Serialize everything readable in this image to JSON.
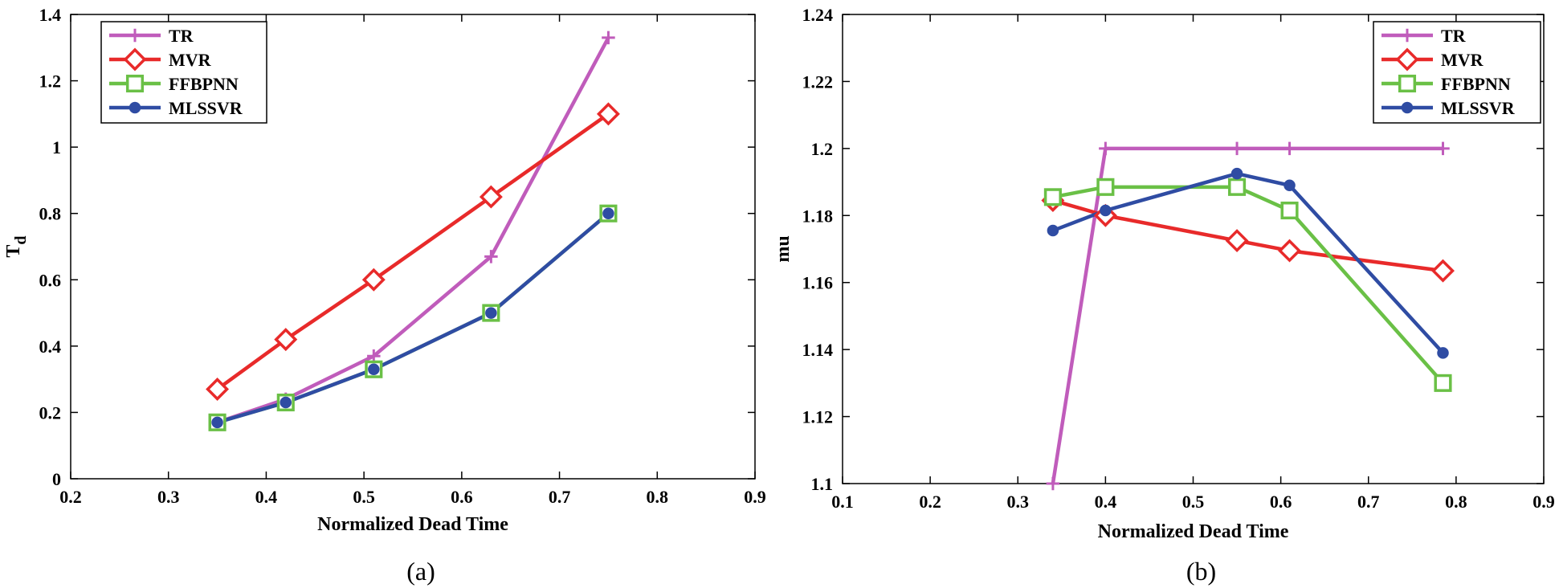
{
  "chart_data": [
    {
      "type": "line",
      "caption": "(a)",
      "xlabel": "Normalized Dead Time",
      "ylabel": "T",
      "ylabel_subscript": "d",
      "xlim": [
        0.2,
        0.9
      ],
      "ylim": [
        0,
        1.4
      ],
      "xticks": [
        "0.2",
        "0.3",
        "0.4",
        "0.5",
        "0.6",
        "0.7",
        "0.8",
        "0.9"
      ],
      "yticks": [
        "0",
        "0.2",
        "0.4",
        "0.6",
        "0.8",
        "1",
        "1.2",
        "1.4"
      ],
      "legend_position": "top-left",
      "series": [
        {
          "name": "TR",
          "color": "#c05cbb",
          "marker": "plus",
          "x": [
            0.35,
            0.42,
            0.51,
            0.63,
            0.75
          ],
          "y": [
            0.17,
            0.24,
            0.37,
            0.67,
            1.33
          ]
        },
        {
          "name": "MVR",
          "color": "#e82a2a",
          "marker": "diamond",
          "x": [
            0.35,
            0.42,
            0.51,
            0.63,
            0.75
          ],
          "y": [
            0.27,
            0.42,
            0.6,
            0.85,
            1.1
          ]
        },
        {
          "name": "FFBPNN",
          "color": "#6ac046",
          "marker": "square",
          "x": [
            0.35,
            0.42,
            0.51,
            0.63,
            0.75
          ],
          "y": [
            0.17,
            0.23,
            0.33,
            0.5,
            0.8
          ]
        },
        {
          "name": "MLSSVR",
          "color": "#2f4ca3",
          "marker": "circle",
          "x": [
            0.35,
            0.42,
            0.51,
            0.63,
            0.75
          ],
          "y": [
            0.17,
            0.23,
            0.33,
            0.5,
            0.8
          ]
        }
      ]
    },
    {
      "type": "line",
      "caption": "(b)",
      "xlabel": "Normalized Dead Time",
      "ylabel": "mu",
      "ylabel_subscript": "",
      "xlim": [
        0.1,
        0.9
      ],
      "ylim": [
        1.1,
        1.24
      ],
      "xticks": [
        "0.1",
        "0.2",
        "0.3",
        "0.4",
        "0.5",
        "0.6",
        "0.7",
        "0.8",
        "0.9"
      ],
      "yticks": [
        "1.1",
        "1.12",
        "1.14",
        "1.16",
        "1.18",
        "1.2",
        "1.22",
        "1.24"
      ],
      "legend_position": "top-right",
      "series": [
        {
          "name": "TR",
          "color": "#c05cbb",
          "marker": "plus",
          "x": [
            0.34,
            0.4,
            0.55,
            0.61,
            0.785
          ],
          "y": [
            1.1,
            1.2,
            1.2,
            1.2,
            1.2
          ]
        },
        {
          "name": "MVR",
          "color": "#e82a2a",
          "marker": "diamond",
          "x": [
            0.34,
            0.4,
            0.55,
            0.61,
            0.785
          ],
          "y": [
            1.1845,
            1.18,
            1.1725,
            1.1695,
            1.1635
          ]
        },
        {
          "name": "FFBPNN",
          "color": "#6ac046",
          "marker": "square",
          "x": [
            0.34,
            0.4,
            0.55,
            0.61,
            0.785
          ],
          "y": [
            1.1855,
            1.1885,
            1.1885,
            1.1815,
            1.13
          ]
        },
        {
          "name": "MLSSVR",
          "color": "#2f4ca3",
          "marker": "circle",
          "x": [
            0.34,
            0.4,
            0.55,
            0.61,
            0.785
          ],
          "y": [
            1.1755,
            1.1815,
            1.1925,
            1.189,
            1.139
          ]
        }
      ]
    }
  ]
}
